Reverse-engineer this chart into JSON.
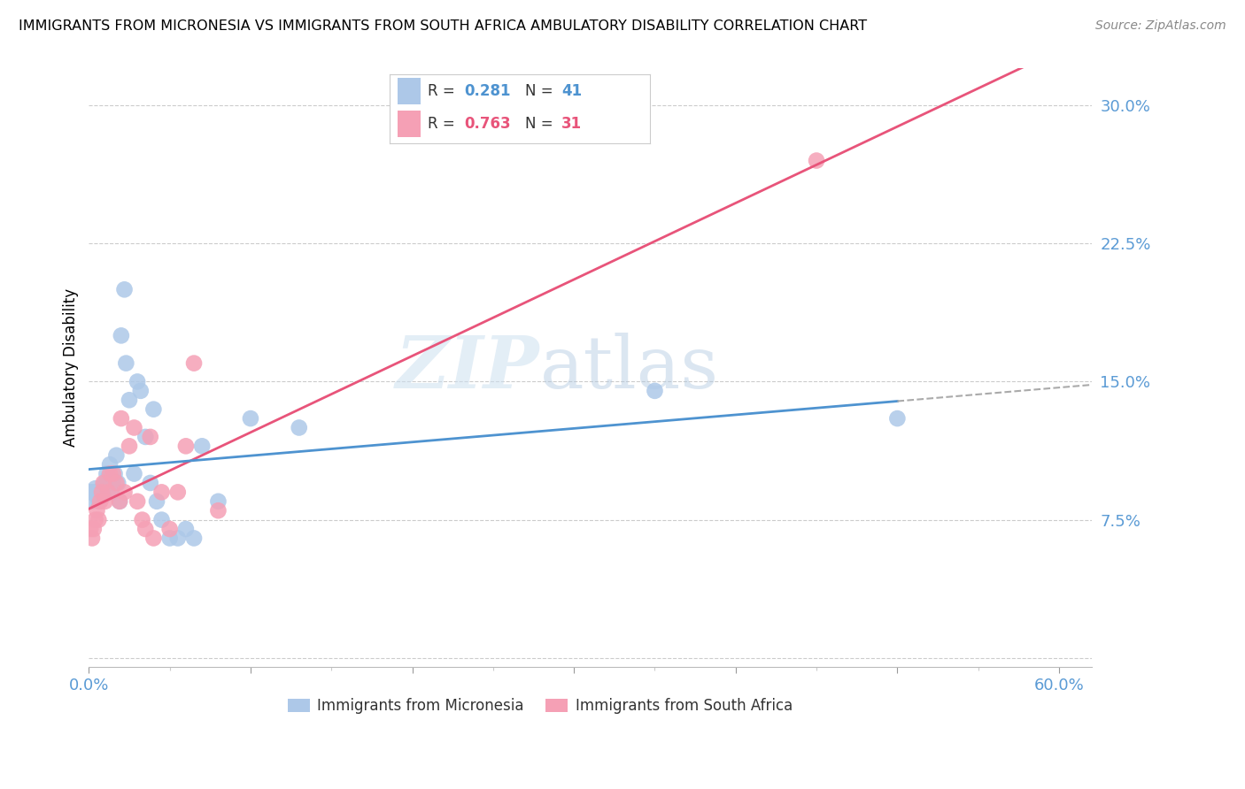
{
  "title": "IMMIGRANTS FROM MICRONESIA VS IMMIGRANTS FROM SOUTH AFRICA AMBULATORY DISABILITY CORRELATION CHART",
  "source": "Source: ZipAtlas.com",
  "ylabel": "Ambulatory Disability",
  "watermark_part1": "ZIP",
  "watermark_part2": "atlas",
  "xlim": [
    0.0,
    0.62
  ],
  "ylim": [
    -0.005,
    0.32
  ],
  "micronesia_color": "#adc8e8",
  "south_africa_color": "#f5a0b5",
  "micronesia_line_color": "#4e93d0",
  "south_africa_line_color": "#e8547a",
  "dashed_line_color": "#aaaaaa",
  "R_micronesia": "0.281",
  "N_micronesia": "41",
  "R_south_africa": "0.763",
  "N_south_africa": "31",
  "legend_label_micronesia": "Immigrants from Micronesia",
  "legend_label_south_africa": "Immigrants from South Africa",
  "y_ticks": [
    0.0,
    0.075,
    0.15,
    0.225,
    0.3
  ],
  "y_tick_labels": [
    "",
    "7.5%",
    "15.0%",
    "22.5%",
    "30.0%"
  ],
  "x_tick_labels_show": [
    "0.0%",
    "60.0%"
  ],
  "x_tick_positions_show": [
    0.0,
    0.6
  ],
  "micronesia_x": [
    0.001,
    0.002,
    0.003,
    0.004,
    0.005,
    0.006,
    0.007,
    0.008,
    0.009,
    0.01,
    0.011,
    0.012,
    0.013,
    0.014,
    0.015,
    0.016,
    0.017,
    0.018,
    0.019,
    0.02,
    0.022,
    0.023,
    0.025,
    0.028,
    0.03,
    0.032,
    0.035,
    0.038,
    0.04,
    0.042,
    0.045,
    0.05,
    0.055,
    0.06,
    0.065,
    0.07,
    0.08,
    0.1,
    0.13,
    0.35,
    0.5
  ],
  "micronesia_y": [
    0.09,
    0.085,
    0.09,
    0.092,
    0.088,
    0.085,
    0.09,
    0.092,
    0.088,
    0.095,
    0.1,
    0.098,
    0.105,
    0.09,
    0.095,
    0.1,
    0.11,
    0.095,
    0.085,
    0.175,
    0.2,
    0.16,
    0.14,
    0.1,
    0.15,
    0.145,
    0.12,
    0.095,
    0.135,
    0.085,
    0.075,
    0.065,
    0.065,
    0.07,
    0.065,
    0.115,
    0.085,
    0.13,
    0.125,
    0.145,
    0.13
  ],
  "south_africa_x": [
    0.001,
    0.002,
    0.003,
    0.004,
    0.005,
    0.006,
    0.007,
    0.008,
    0.009,
    0.01,
    0.012,
    0.013,
    0.015,
    0.017,
    0.019,
    0.02,
    0.022,
    0.025,
    0.028,
    0.03,
    0.033,
    0.035,
    0.038,
    0.04,
    0.045,
    0.05,
    0.055,
    0.06,
    0.065,
    0.08,
    0.45
  ],
  "south_africa_y": [
    0.07,
    0.065,
    0.07,
    0.075,
    0.08,
    0.075,
    0.085,
    0.09,
    0.095,
    0.085,
    0.09,
    0.1,
    0.1,
    0.095,
    0.085,
    0.13,
    0.09,
    0.115,
    0.125,
    0.085,
    0.075,
    0.07,
    0.12,
    0.065,
    0.09,
    0.07,
    0.09,
    0.115,
    0.16,
    0.08,
    0.27
  ]
}
